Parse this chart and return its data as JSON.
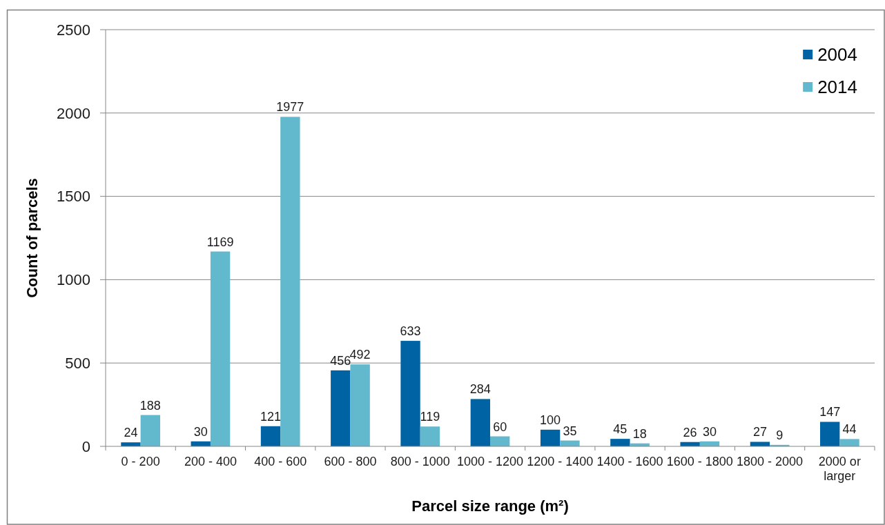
{
  "chart_data": {
    "type": "bar",
    "categories": [
      "0 - 200",
      "200 - 400",
      "400 - 600",
      "600 - 800",
      "800 - 1000",
      "1000 - 1200",
      "1200 - 1400",
      "1400 - 1600",
      "1600 - 1800",
      "1800 - 2000",
      "2000 or larger"
    ],
    "series": [
      {
        "name": "2004",
        "color": "#0063a3",
        "values": [
          24,
          30,
          121,
          456,
          633,
          284,
          100,
          45,
          26,
          27,
          147
        ]
      },
      {
        "name": "2014",
        "color": "#62b8cc",
        "values": [
          188,
          1169,
          1977,
          492,
          119,
          60,
          35,
          18,
          30,
          9,
          44
        ]
      }
    ],
    "xlabel": "Parcel size range (m²)",
    "ylabel": "Count of parcels",
    "ylim": [
      0,
      2500
    ],
    "yticks": [
      0,
      500,
      1000,
      1500,
      2000,
      2500
    ],
    "grid": "y",
    "legend": "top right",
    "data_labels": true
  }
}
